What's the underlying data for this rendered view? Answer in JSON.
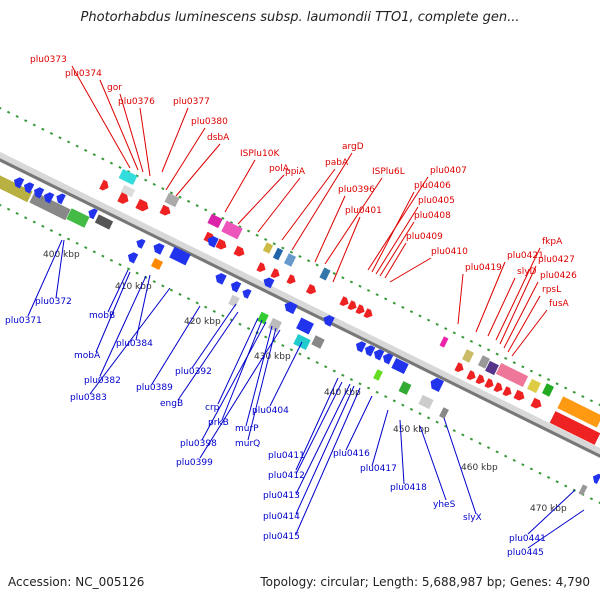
{
  "header": {
    "title": "Photorhabdus luminescens subsp. laumondii TTO1, complete gen..."
  },
  "footer": {
    "accession": "Accession: NC_005126",
    "topology": "Topology: circular; Length: 5,688,987 bp; Genes: 4,790"
  },
  "colors": {
    "forward_label": "#dd0000",
    "reverse_label": "#0000cc",
    "backbone": "#888888",
    "tick": "#228822"
  },
  "scale_ticks": [
    {
      "label": "400 kbp"
    },
    {
      "label": "410 kbp"
    },
    {
      "label": "420 kbp"
    },
    {
      "label": "430 kbp"
    },
    {
      "label": "440 kbp"
    },
    {
      "label": "450 kbp"
    },
    {
      "label": "460 kbp"
    },
    {
      "label": "470 kbp"
    }
  ],
  "forward_genes": [
    {
      "label": "plu0373"
    },
    {
      "label": "plu0374"
    },
    {
      "label": "gor"
    },
    {
      "label": "plu0376"
    },
    {
      "label": "plu0377"
    },
    {
      "label": "plu0380"
    },
    {
      "label": "dsbA"
    },
    {
      "label": "ISPlu10K"
    },
    {
      "label": "polA"
    },
    {
      "label": "ppiA"
    },
    {
      "label": "pabA"
    },
    {
      "label": "argD"
    },
    {
      "label": "plu0396"
    },
    {
      "label": "ISPlu6L"
    },
    {
      "label": "plu0401"
    },
    {
      "label": "plu0407"
    },
    {
      "label": "plu0406"
    },
    {
      "label": "plu0405"
    },
    {
      "label": "plu0408"
    },
    {
      "label": "plu0409"
    },
    {
      "label": "plu0410"
    },
    {
      "label": "plu0419"
    },
    {
      "label": "plu0421"
    },
    {
      "label": "slyD"
    },
    {
      "label": "fkpA"
    },
    {
      "label": "plu0427"
    },
    {
      "label": "plu0426"
    },
    {
      "label": "rpsL"
    },
    {
      "label": "fusA"
    }
  ],
  "reverse_genes": [
    {
      "label": "plu0372"
    },
    {
      "label": "plu0371"
    },
    {
      "label": "mobB"
    },
    {
      "label": "mobA"
    },
    {
      "label": "plu0384"
    },
    {
      "label": "plu0382"
    },
    {
      "label": "plu0383"
    },
    {
      "label": "plu0389"
    },
    {
      "label": "plu0392"
    },
    {
      "label": "engB"
    },
    {
      "label": "crp"
    },
    {
      "label": "prkB"
    },
    {
      "label": "plu0398"
    },
    {
      "label": "murP"
    },
    {
      "label": "murQ"
    },
    {
      "label": "plu0399"
    },
    {
      "label": "plu0404"
    },
    {
      "label": "plu0411"
    },
    {
      "label": "plu0412"
    },
    {
      "label": "plu0413"
    },
    {
      "label": "plu0414"
    },
    {
      "label": "plu0415"
    },
    {
      "label": "plu0416"
    },
    {
      "label": "plu0417"
    },
    {
      "label": "plu0418"
    },
    {
      "label": "yheS"
    },
    {
      "label": "slyX"
    },
    {
      "label": "plu0441"
    },
    {
      "label": "plu0445"
    }
  ]
}
